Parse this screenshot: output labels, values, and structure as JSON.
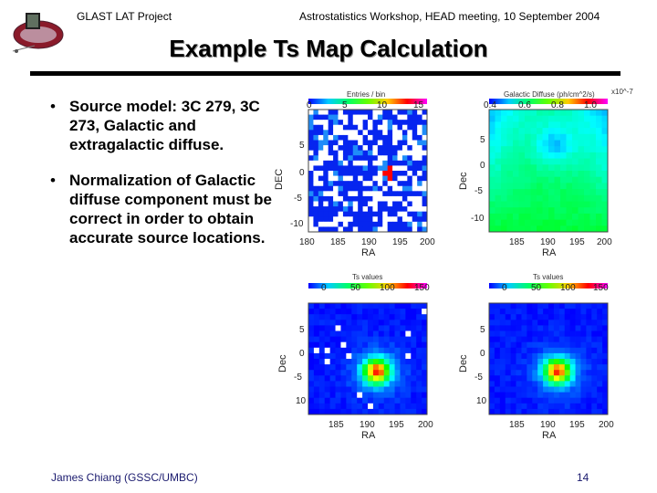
{
  "header": {
    "project": "GLAST LAT Project",
    "workshop": "Astrostatistics Workshop, HEAD meeting, 10 September 2004"
  },
  "title": "Example Ts Map Calculation",
  "bullets": [
    {
      "marker": "•",
      "text": "Source model: 3C 279, 3C 273, Galactic and extragalactic diffuse."
    },
    {
      "marker": "•",
      "text": "Normalization of Galactic diffuse component must be correct in order to obtain accurate source locations."
    }
  ],
  "footer": {
    "author": "James Chiang (GSSC/UMBC)",
    "page": "14"
  },
  "panels": {
    "counts": {
      "colorbar_title": "Entries / bin",
      "colorbar_ticks": [
        "0",
        "5",
        "10",
        "15"
      ],
      "xlabel": "RA",
      "ylabel": "DEC",
      "xticks": [
        "180",
        "185",
        "190",
        "195",
        "200"
      ],
      "yticks": [
        "5",
        "0",
        "-5",
        "-10"
      ]
    },
    "galactic": {
      "colorbar_title": "Galactic Diffuse (ph/cm^2/s)",
      "colorbar_exponent": "x10^-7",
      "colorbar_ticks": [
        "0.4",
        "0.6",
        "0.8",
        "1.0"
      ],
      "xlabel": "RA",
      "ylabel": "Dec",
      "xticks": [
        "185",
        "190",
        "195",
        "200"
      ],
      "yticks": [
        "5",
        "0",
        "-5",
        "-10"
      ]
    },
    "ts_left": {
      "colorbar_title": "Ts values",
      "colorbar_ticks": [
        "0",
        "50",
        "100",
        "150"
      ],
      "xlabel": "RA",
      "ylabel": "Dec",
      "xticks": [
        "185",
        "190",
        "195",
        "200"
      ],
      "yticks": [
        "5",
        "0",
        "-5",
        "10"
      ]
    },
    "ts_right": {
      "colorbar_title": "Ts values",
      "colorbar_ticks": [
        "0",
        "50",
        "100",
        "150"
      ],
      "xlabel": "RA",
      "ylabel": "Dec",
      "xticks": [
        "185",
        "190",
        "195",
        "200"
      ],
      "yticks": [
        "5",
        "0",
        "-5",
        "10"
      ]
    }
  }
}
